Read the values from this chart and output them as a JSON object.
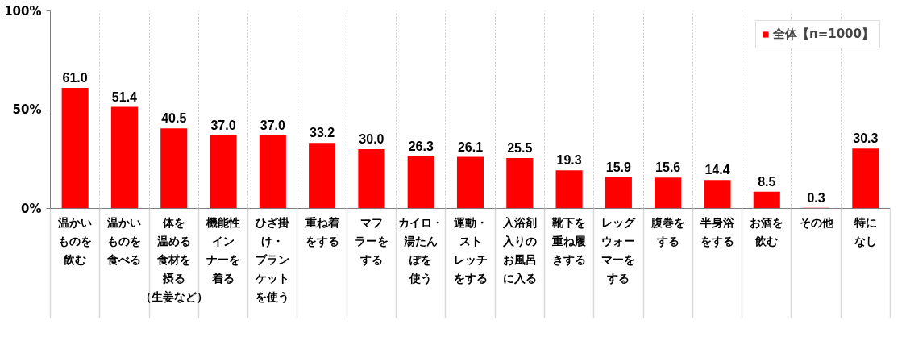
{
  "chart_data": {
    "type": "bar",
    "categories": [
      "温かいものを飲む",
      "温かいものを食べる",
      "体を温める食材を摂る（生姜など）",
      "機能性インナーを着る",
      "ひざ掛け・ブランケットを使う",
      "重ね着をする",
      "マフラーをする",
      "カイロ・湯たんぽを使う",
      "運動・ストレッチをする",
      "入浴剤入りのお風呂に入る",
      "靴下を重ね履きする",
      "レッグウォーマーをする",
      "腹巻をする",
      "半身浴をする",
      "お酒を飲む",
      "その他",
      "特になし"
    ],
    "series": [
      {
        "name": "全体【n=1000】",
        "color": "#ff0000",
        "values": [
          61.0,
          51.4,
          40.5,
          37.0,
          37.0,
          33.2,
          30.0,
          26.3,
          26.1,
          25.5,
          19.3,
          15.9,
          15.6,
          14.4,
          8.5,
          0.3,
          30.3
        ],
        "value_labels": [
          "61.0",
          "51.4",
          "40.5",
          "37.0",
          "37.0",
          "33.2",
          "30.0",
          "26.3",
          "26.1",
          "25.5",
          "19.3",
          "15.9",
          "15.6",
          "14.4",
          "8.5",
          "0.3",
          "30.3"
        ]
      }
    ],
    "ylim": [
      0,
      100
    ],
    "yticks": [
      {
        "value": 0,
        "label": "0%"
      },
      {
        "value": 50,
        "label": "50%"
      },
      {
        "value": 100,
        "label": "100%"
      }
    ],
    "grid": "x",
    "legend": "top right"
  }
}
